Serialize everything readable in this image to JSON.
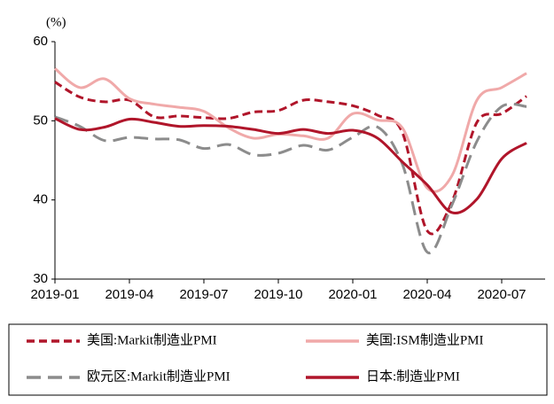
{
  "chart_data": {
    "type": "line",
    "unit_label": "(%)",
    "categories": [
      "2019-01",
      null,
      null,
      "2019-04",
      null,
      null,
      "2019-07",
      null,
      null,
      "2019-10",
      null,
      null,
      "2020-01",
      null,
      null,
      "2020-04",
      null,
      null,
      "2020-07",
      null
    ],
    "ylim": [
      30,
      60
    ],
    "yticks": [
      30,
      40,
      50,
      60
    ],
    "series": [
      {
        "name": "美国:Markit制造业PMI",
        "color": "#b0152a",
        "line_style": "dashed",
        "values": [
          54.9,
          53.0,
          52.4,
          52.6,
          50.5,
          50.6,
          50.4,
          50.3,
          51.1,
          51.3,
          52.6,
          52.4,
          51.9,
          50.7,
          48.5,
          36.1,
          39.8,
          49.8,
          50.9,
          53.1
        ]
      },
      {
        "name": "美国:ISM制造业PMI",
        "color": "#f0a9a9",
        "line_style": "solid",
        "values": [
          56.6,
          54.2,
          55.3,
          52.8,
          52.1,
          51.7,
          51.2,
          49.1,
          47.8,
          48.3,
          48.1,
          47.8,
          50.9,
          50.1,
          49.1,
          41.5,
          43.1,
          52.6,
          54.2,
          56.0
        ]
      },
      {
        "name": "欧元区:Markit制造业PMI",
        "color": "#8c8c8c",
        "line_style": "longdash",
        "values": [
          50.5,
          49.3,
          47.5,
          47.9,
          47.7,
          47.6,
          46.5,
          47.0,
          45.7,
          45.9,
          46.9,
          46.3,
          47.9,
          49.2,
          44.5,
          33.4,
          39.4,
          47.4,
          51.8,
          51.8
        ]
      },
      {
        "name": "日本:制造业PMI",
        "color": "#b0152a",
        "line_style": "solid",
        "values": [
          50.3,
          48.9,
          49.2,
          50.2,
          49.8,
          49.3,
          49.4,
          49.3,
          48.9,
          48.4,
          48.9,
          48.4,
          48.8,
          47.8,
          44.8,
          41.9,
          38.4,
          40.1,
          45.2,
          47.2
        ]
      }
    ]
  }
}
